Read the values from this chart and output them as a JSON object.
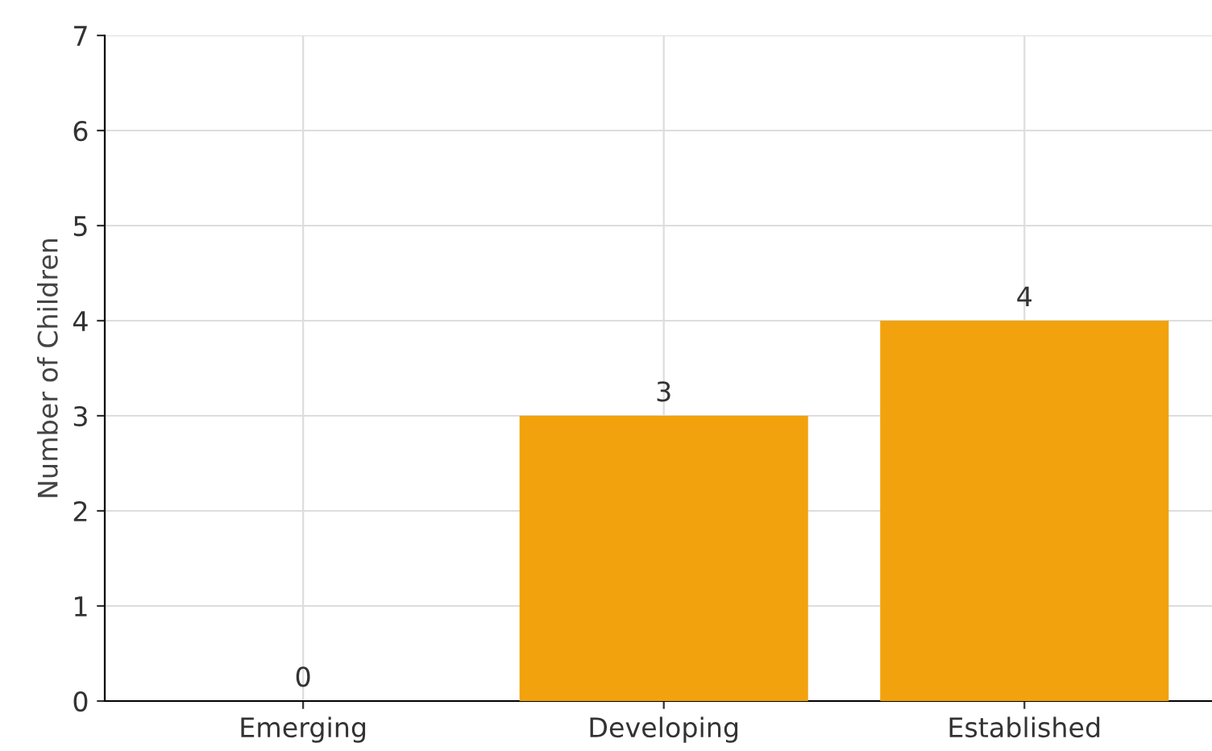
{
  "chart_data": {
    "type": "bar",
    "ylabel": "Number of Children",
    "categories": [
      "Emerging",
      "Developing",
      "Established"
    ],
    "values": [
      0,
      3,
      4
    ],
    "color": "#f2a20c",
    "ylim": [
      0,
      7
    ],
    "yticks": [
      0,
      1,
      2,
      3,
      4,
      5,
      6,
      7
    ],
    "grid": true,
    "data_labels": true
  }
}
